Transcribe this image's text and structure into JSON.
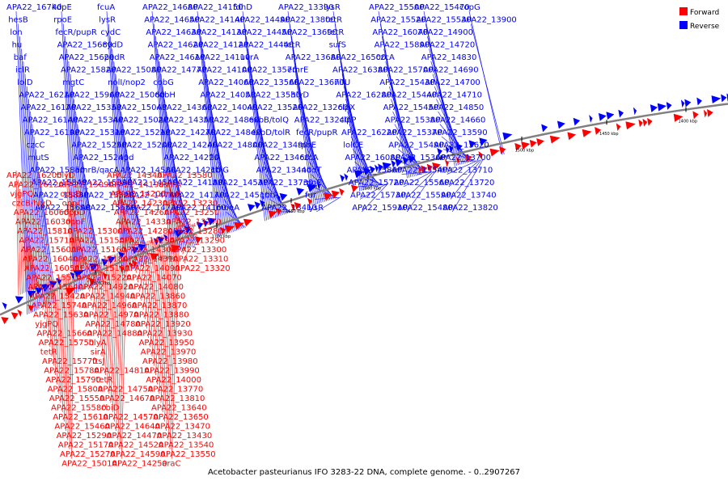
{
  "title": "Acetobacter pasteurianus IFO 3283-22 DNA, complete genome. - 0..2907267",
  "legend": [
    {
      "label": "Forward",
      "color": "#ff0000"
    },
    {
      "label": "Reverse",
      "color": "#0000ff"
    }
  ],
  "colors": {
    "forward": "#ff0000",
    "reverse": "#0000ff",
    "backbone": "#808080"
  },
  "kbp_markers": [
    "1800 kbp",
    "1750 kbp",
    "1700 kbp",
    "1650 kbp",
    "1600 kbp",
    "1550 kbp",
    "1500 kbp",
    "1450 kbp",
    "1400 kbp"
  ],
  "reverse_labels": [
    "APA22_16740",
    "hesB",
    "lon",
    "hu",
    "baf",
    "iclR",
    "lolD",
    "APA22_16210",
    "APA22_16170",
    "APA22_16140",
    "APA22_16190",
    "czcC",
    "mutS",
    "APA22_15850",
    "APA22_15840",
    "APA22_15830",
    "APA22_15690",
    "kdpE",
    "rpoE",
    "fecR/pupR",
    "APA22_15680",
    "APA22_15620",
    "APA22_15820",
    "mgtC",
    "APA22_15960",
    "APA22_15350",
    "APA22_15340",
    "APA22_15310",
    "APA22_15250",
    "APA22_15240",
    "emrB/qacA",
    "APA22_15390",
    "APA22_15320",
    "APA22_15650",
    "fcuA",
    "lysR",
    "cydC",
    "cydD",
    "padR",
    "APA22_15080",
    "nolI/nop2",
    "APA22_15060",
    "APA22_15040",
    "APA22_15020",
    "APA22_15210",
    "APA22_15200",
    "npd",
    "APA22_14580",
    "APA22_14540",
    "APA22_14740",
    "APA22_14730",
    "APA22_14680",
    "APA22_14650",
    "APA22_14630",
    "APA22_14620",
    "APA22_14610",
    "APA22_14770",
    "cobG",
    "cobH",
    "APA22_14360",
    "APA22_14350",
    "APA22_14270",
    "APA22_14240",
    "APA22_14220",
    "APA22_14210",
    "APA22_14180",
    "APA22_14170",
    "APA22_14160",
    "APA22_14150",
    "APA22_14140",
    "APA22_14130",
    "APA22_14120",
    "APA22_14110",
    "APA22_14100",
    "APA22_14060",
    "APA22_14050",
    "APA22_14040",
    "APA22_14860",
    "APA22_14840",
    "APA22_14800",
    "fis",
    "cbiG",
    "APA22_14530",
    "APA22_14510",
    "moeA",
    "fdhD",
    "APA22_14490",
    "APA22_14450",
    "APA22_14440",
    "uvrA",
    "APA22_13570",
    "APA22_13560",
    "APA22_13530",
    "APA22_13520",
    "exbB/tolQ",
    "exbD/tolR",
    "APA22_13490",
    "APA22_13460",
    "APA22_13440",
    "APA22_13730",
    "gntR",
    "APA22_13410",
    "APA22_13390",
    "APA22_13800",
    "APA22_13690",
    "tetR",
    "APA22_13680",
    "emrE",
    "APA22_13670",
    "hlyD",
    "APA22_13260",
    "APA22_13240",
    "fecR/pupR",
    "rpoE",
    "czcA",
    "nodT",
    "rpoE",
    "fur",
    "lysR",
    "lysR",
    "tetR",
    "tetR",
    "sufS",
    "APA22_16500",
    "APA22_16380",
    "nifU",
    "APA22_16280",
    "clpX",
    "clpP",
    "APA22_16220",
    "lolCE",
    "APA22_16080",
    "APA22_15860",
    "APA22_15720",
    "APA22_15730",
    "APA22_15910",
    "APA22_15500",
    "APA22_15520",
    "APA22_16070",
    "APA22_15890",
    "czcA",
    "APA22_15700",
    "APA22_15430",
    "APA22_15440",
    "APA22_15450",
    "APA22_15380",
    "APA22_15370",
    "APA22_15490",
    "APA22_15360",
    "APA22_15540",
    "APA22_15560",
    "APA22_15590",
    "APA22_15480",
    "APA22_15470",
    "APA22_15530",
    "APA22_14900",
    "APA22_14720",
    "APA22_14830",
    "APA22_14690",
    "APA22_14700",
    "APA22_14710",
    "APA22_14850",
    "APA22_14660",
    "APA22_13590",
    "APA22_13620",
    "APA22_13700",
    "APA22_13710",
    "APA22_13720",
    "APA22_13740",
    "APA22_13820",
    "copG",
    "APA22_13900"
  ],
  "forward_labels": [
    "APA22_16200",
    "APA22_16120",
    "vjgPQ",
    "czcB/hlyD",
    "APA22_16060",
    "APA22_16030",
    "APA22_15810",
    "APA22_15710",
    "APA22_15600",
    "APA22_16040",
    "APA22_16050",
    "APA22_15510",
    "APA22_15640",
    "APA22_15420",
    "APA22_15740",
    "APA22_15630",
    "yjgPQ",
    "APA22_15660",
    "APA22_15750",
    "tetR",
    "APA22_15770",
    "APA22_15780",
    "APA22_15790",
    "APA22_15800",
    "APA22_15550",
    "APA22_15580",
    "APA22_15610",
    "APA22_15460",
    "APA22_15290",
    "APA22_15170",
    "APA22_15270",
    "APA22_15010",
    "hlyD",
    "APA22_15090",
    "oppB",
    "oppC",
    "oppD",
    "oppF",
    "APA22_15300",
    "APA22_15150",
    "APA22_15160",
    "APA22_15180",
    "APA22_15190",
    "APA22_15220",
    "APA22_14920",
    "APA22_14940",
    "APA22_14960",
    "APA22_14970",
    "APA22_14780",
    "APA22_14880",
    "hlyA",
    "sirA",
    "ftsJ",
    "APA22_14810",
    "tetR",
    "APA22_14750",
    "APA22_14670",
    "cbiD",
    "APA22_14570",
    "APA22_14640",
    "APA22_14470",
    "APA22_14520",
    "APA22_14590",
    "APA22_14250",
    "APA22_14340",
    "APA22_14190",
    "APA22_14200",
    "APA22_14230",
    "APA22_14260",
    "APA22_14330",
    "APA22_14280",
    "APA22_14290",
    "APA22_14300",
    "APA22_14310",
    "APA22_14090",
    "APA22_14070",
    "APA22_14080",
    "APA22_13860",
    "APA22_13870",
    "APA22_13880",
    "APA22_13920",
    "APA22_13930",
    "APA22_13950",
    "APA22_13970",
    "APA22_13980",
    "APA22_13990",
    "APA22_14000",
    "APA22_13770",
    "APA22_13810",
    "APA22_13640",
    "APA22_13650",
    "APA22_13470",
    "APA22_13430",
    "APA22_13540",
    "APA22_13550",
    "araC",
    "APA22_13580",
    "asmA",
    "dnaK",
    "APA22_13230",
    "APA22_13250",
    "APA22_13270",
    "APA22_13280",
    "APA22_13290",
    "APA22_13300",
    "APA22_13310",
    "APA22_13320"
  ]
}
